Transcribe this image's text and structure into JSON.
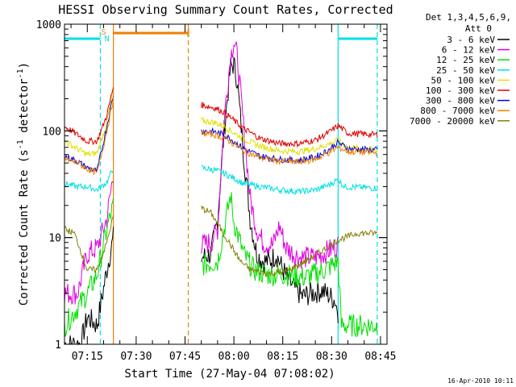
{
  "chart_data": {
    "type": "line",
    "title": "HESSI Observing Summary Count Rates, Corrected",
    "xlabel": "Start Time (27-May-04 07:08:02)",
    "ylabel_main": "Corrected Count Rate (s",
    "ylabel_sup1": "-1",
    "ylabel_mid": " detector",
    "ylabel_sup2": "-1",
    "ylabel_end": ")",
    "footer": "16-Apr-2010 10:11",
    "y_scale": "log",
    "xlim": [
      "07:08",
      "08:47"
    ],
    "ylim": [
      1,
      1000
    ],
    "x_ticks": [
      "07:15",
      "07:30",
      "07:45",
      "08:00",
      "08:15",
      "08:30",
      "08:45"
    ],
    "y_ticks": [
      "1",
      "10",
      "100",
      "1000"
    ],
    "legend_header": [
      "Det 1,3,4,5,6,9,",
      "Att 0"
    ],
    "flags": {
      "S": {
        "time": "07:20",
        "color": "#f08000"
      },
      "N": {
        "time": "07:21",
        "color": "#00e0e0"
      }
    },
    "lines": {
      "night": [
        {
          "start": "07:08",
          "end": "07:19",
          "color": "#00e0e0"
        },
        {
          "start": "08:32",
          "end": "08:44",
          "color": "#00e0e0"
        }
      ],
      "saa": [
        {
          "start": "07:23",
          "end": "07:46",
          "color": "#f08000"
        }
      ]
    },
    "vlines": [
      {
        "time": "07:19",
        "color": "#00e0e0",
        "style": "dashed"
      },
      {
        "time": "07:23",
        "color": "#f08000",
        "style": "solid"
      },
      {
        "time": "07:46",
        "color": "#f08000",
        "style": "dashed"
      },
      {
        "time": "08:32",
        "color": "#00e0e0",
        "style": "solid"
      },
      {
        "time": "08:44",
        "color": "#00e0e0",
        "style": "dashed"
      }
    ],
    "gap": [
      "07:23",
      "07:50"
    ],
    "series": [
      {
        "name": "3 - 6 keV",
        "color": "#000000",
        "before": [
          [
            "07:08",
            1
          ],
          [
            "07:13",
            1
          ],
          [
            "07:15",
            1.8
          ],
          [
            "07:18",
            1.5
          ],
          [
            "07:21",
            5
          ],
          [
            "07:23",
            10
          ]
        ],
        "after": [
          [
            "07:50",
            6.5
          ],
          [
            "07:53",
            7
          ],
          [
            "07:55",
            15
          ],
          [
            "07:57",
            100
          ],
          [
            "07:59",
            400
          ],
          [
            "08:00",
            420
          ],
          [
            "08:01",
            300
          ],
          [
            "08:03",
            60
          ],
          [
            "08:05",
            15
          ],
          [
            "08:07",
            7
          ],
          [
            "08:09",
            6
          ],
          [
            "08:11",
            6
          ],
          [
            "08:13",
            7
          ],
          [
            "08:15",
            5
          ],
          [
            "08:18",
            3.5
          ],
          [
            "08:21",
            2.8
          ],
          [
            "08:24",
            3
          ],
          [
            "08:27",
            3.2
          ],
          [
            "08:31",
            2.6
          ],
          [
            "08:32",
            2
          ]
        ]
      },
      {
        "name": "6 - 12 keV",
        "color": "#e000e0",
        "before": [
          [
            "07:08",
            3
          ],
          [
            "07:12",
            3
          ],
          [
            "07:15",
            7
          ],
          [
            "07:18",
            8
          ],
          [
            "07:21",
            15
          ],
          [
            "07:23",
            40
          ]
        ],
        "after": [
          [
            "07:50",
            8.5
          ],
          [
            "07:53",
            9
          ],
          [
            "07:55",
            12
          ],
          [
            "07:57",
            130
          ],
          [
            "07:59",
            500
          ],
          [
            "08:00",
            700
          ],
          [
            "08:01",
            500
          ],
          [
            "08:03",
            110
          ],
          [
            "08:05",
            23
          ],
          [
            "08:07",
            12
          ],
          [
            "08:09",
            9
          ],
          [
            "08:12",
            8.5
          ],
          [
            "08:14",
            13
          ],
          [
            "08:16",
            8
          ],
          [
            "08:20",
            6.5
          ],
          [
            "08:25",
            6.5
          ],
          [
            "08:29",
            7.5
          ],
          [
            "08:32",
            8.5
          ]
        ]
      },
      {
        "name": "12 - 25 keV",
        "color": "#00e000",
        "before": [
          [
            "07:08",
            1.5
          ],
          [
            "07:12",
            2.2
          ],
          [
            "07:15",
            3
          ],
          [
            "07:18",
            4.5
          ],
          [
            "07:21",
            12
          ],
          [
            "07:23",
            20
          ]
        ],
        "after": [
          [
            "07:50",
            5.5
          ],
          [
            "07:55",
            6
          ],
          [
            "07:57",
            12
          ],
          [
            "07:59",
            25
          ],
          [
            "08:00",
            14
          ],
          [
            "08:03",
            7
          ],
          [
            "08:06",
            5
          ],
          [
            "08:10",
            4.5
          ],
          [
            "08:16",
            4.5
          ],
          [
            "08:22",
            4.2
          ],
          [
            "08:28",
            5
          ],
          [
            "08:32",
            6
          ],
          [
            "08:33",
            1.5
          ],
          [
            "08:44",
            1.5
          ]
        ]
      },
      {
        "name": "25 - 50 keV",
        "color": "#00e0e0",
        "before": [
          [
            "07:08",
            32
          ],
          [
            "07:12",
            30
          ],
          [
            "07:15",
            30
          ],
          [
            "07:18",
            28
          ],
          [
            "07:21",
            33
          ],
          [
            "07:23",
            45
          ]
        ],
        "after": [
          [
            "07:50",
            45
          ],
          [
            "07:54",
            43
          ],
          [
            "07:57",
            40
          ],
          [
            "08:00",
            36
          ],
          [
            "08:03",
            32
          ],
          [
            "08:08",
            30
          ],
          [
            "08:14",
            28
          ],
          [
            "08:20",
            27
          ],
          [
            "08:25",
            28
          ],
          [
            "08:29",
            31
          ],
          [
            "08:32",
            35
          ],
          [
            "08:34",
            30
          ],
          [
            "08:44",
            29
          ]
        ]
      },
      {
        "name": "50 - 100 keV",
        "color": "#e0e000",
        "before": [
          [
            "07:08",
            80
          ],
          [
            "07:12",
            68
          ],
          [
            "07:15",
            60
          ],
          [
            "07:18",
            62
          ],
          [
            "07:21",
            120
          ],
          [
            "07:23",
            250
          ]
        ],
        "after": [
          [
            "07:50",
            125
          ],
          [
            "07:54",
            120
          ],
          [
            "07:57",
            110
          ],
          [
            "08:00",
            96
          ],
          [
            "08:03",
            84
          ],
          [
            "08:08",
            72
          ],
          [
            "08:14",
            65
          ],
          [
            "08:20",
            64
          ],
          [
            "08:25",
            68
          ],
          [
            "08:29",
            75
          ],
          [
            "08:32",
            82
          ],
          [
            "08:35",
            70
          ],
          [
            "08:44",
            66
          ]
        ]
      },
      {
        "name": "100 - 300 keV",
        "color": "#e00000",
        "before": [
          [
            "07:08",
            110
          ],
          [
            "07:12",
            92
          ],
          [
            "07:15",
            80
          ],
          [
            "07:18",
            80
          ],
          [
            "07:21",
            140
          ],
          [
            "07:23",
            260
          ]
        ],
        "after": [
          [
            "07:50",
            175
          ],
          [
            "07:54",
            165
          ],
          [
            "07:57",
            150
          ],
          [
            "08:00",
            125
          ],
          [
            "08:03",
            105
          ],
          [
            "08:08",
            85
          ],
          [
            "08:14",
            76
          ],
          [
            "08:20",
            76
          ],
          [
            "08:25",
            82
          ],
          [
            "08:29",
            96
          ],
          [
            "08:32",
            112
          ],
          [
            "08:35",
            95
          ],
          [
            "08:44",
            92
          ]
        ]
      },
      {
        "name": "300 - 800 keV",
        "color": "#0000e0",
        "before": [
          [
            "07:08",
            58
          ],
          [
            "07:12",
            52
          ],
          [
            "07:15",
            45
          ],
          [
            "07:18",
            42
          ],
          [
            "07:21",
            110
          ],
          [
            "07:23",
            220
          ]
        ],
        "after": [
          [
            "07:50",
            100
          ],
          [
            "07:54",
            98
          ],
          [
            "07:57",
            92
          ],
          [
            "08:00",
            80
          ],
          [
            "08:03",
            68
          ],
          [
            "08:08",
            58
          ],
          [
            "08:14",
            54
          ],
          [
            "08:20",
            53
          ],
          [
            "08:25",
            57
          ],
          [
            "08:29",
            66
          ],
          [
            "08:32",
            78
          ],
          [
            "08:35",
            68
          ],
          [
            "08:44",
            66
          ]
        ]
      },
      {
        "name": "800 - 7000 keV",
        "color": "#f08000",
        "before": [
          [
            "07:08",
            55
          ],
          [
            "07:12",
            50
          ],
          [
            "07:15",
            44
          ],
          [
            "07:18",
            40
          ],
          [
            "07:21",
            100
          ],
          [
            "07:23",
            200
          ]
        ],
        "after": [
          [
            "07:50",
            95
          ],
          [
            "07:54",
            92
          ],
          [
            "07:57",
            86
          ],
          [
            "08:00",
            75
          ],
          [
            "08:03",
            65
          ],
          [
            "08:08",
            56
          ],
          [
            "08:14",
            52
          ],
          [
            "08:20",
            51
          ],
          [
            "08:25",
            54
          ],
          [
            "08:29",
            62
          ],
          [
            "08:32",
            70
          ],
          [
            "08:35",
            64
          ],
          [
            "08:44",
            62
          ]
        ]
      },
      {
        "name": "7000 - 20000 keV",
        "color": "#808000",
        "before": [
          [
            "07:08",
            12
          ],
          [
            "07:11",
            11
          ],
          [
            "07:13",
            7.5
          ],
          [
            "07:15",
            5
          ],
          [
            "07:18",
            5
          ],
          [
            "07:21",
            9
          ],
          [
            "07:23",
            16
          ]
        ],
        "after": [
          [
            "07:50",
            19
          ],
          [
            "07:53",
            17
          ],
          [
            "07:56",
            12
          ],
          [
            "07:59",
            8.5
          ],
          [
            "08:02",
            6
          ],
          [
            "08:05",
            5
          ],
          [
            "08:10",
            4.6
          ],
          [
            "08:16",
            4.8
          ],
          [
            "08:22",
            6
          ],
          [
            "08:27",
            7.5
          ],
          [
            "08:32",
            9.5
          ],
          [
            "08:38",
            11
          ],
          [
            "08:44",
            11
          ]
        ]
      }
    ]
  }
}
